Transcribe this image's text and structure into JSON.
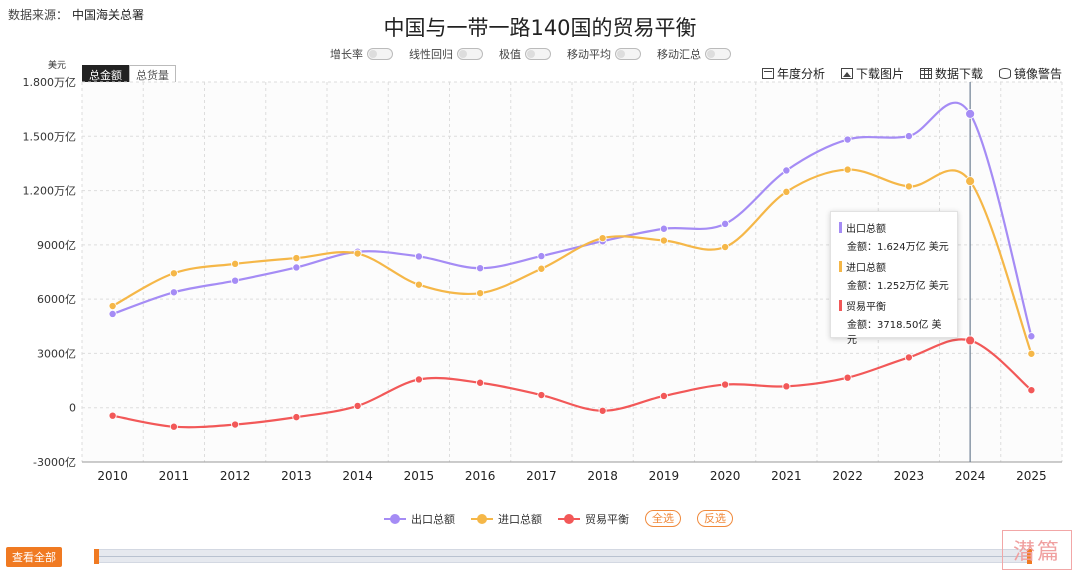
{
  "source": {
    "label": "数据来源：",
    "value": "中国海关总署"
  },
  "title": "中国与一带一路140国的贸易平衡",
  "toggles": [
    {
      "label": "增长率"
    },
    {
      "label": "线性回归"
    },
    {
      "label": "极值"
    },
    {
      "label": "移动平均"
    },
    {
      "label": "移动汇总"
    }
  ],
  "unit_label": "美元",
  "metric_tabs": [
    {
      "label": "总金额",
      "active": true
    },
    {
      "label": "总货量",
      "active": false
    }
  ],
  "tools": [
    {
      "label": "年度分析",
      "icon": "calendar-icon"
    },
    {
      "label": "下载图片",
      "icon": "image-icon"
    },
    {
      "label": "数据下载",
      "icon": "table-icon"
    },
    {
      "label": "镜像警告",
      "icon": "database-icon"
    }
  ],
  "chart_data": {
    "type": "line",
    "x": [
      "2010",
      "2011",
      "2012",
      "2013",
      "2014",
      "2015",
      "2016",
      "2017",
      "2018",
      "2019",
      "2020",
      "2021",
      "2022",
      "2023",
      "2024",
      "2025"
    ],
    "ylim": [
      -3000,
      18000
    ],
    "yticks": [
      -3000,
      0,
      3000,
      6000,
      9000,
      12000,
      15000,
      18000
    ],
    "ytick_labels": [
      "-3000亿",
      "0",
      "3000亿",
      "6000亿",
      "9000亿",
      "1.200万亿",
      "1.500万亿",
      "1.800万亿"
    ],
    "grid": true,
    "series": [
      {
        "name": "出口总额",
        "color": "#a58cf5",
        "values": [
          5180,
          6380,
          7020,
          7750,
          8620,
          8360,
          7710,
          8380,
          9200,
          9890,
          10160,
          13110,
          14820,
          15010,
          16240,
          3950
        ]
      },
      {
        "name": "进口总额",
        "color": "#f5b748",
        "values": [
          5620,
          7430,
          7950,
          8270,
          8520,
          6800,
          6330,
          7680,
          9370,
          9240,
          8880,
          11930,
          13160,
          12230,
          12520,
          2980
        ]
      },
      {
        "name": "贸易平衡",
        "color": "#f25858",
        "values": [
          -440,
          -1050,
          -930,
          -520,
          100,
          1560,
          1380,
          700,
          -170,
          650,
          1280,
          1180,
          1660,
          2780,
          3718.5,
          970
        ]
      }
    ],
    "highlight_index": 14
  },
  "tooltip": {
    "items": [
      {
        "name": "出口总额",
        "value": "金额：1.624万亿 美元",
        "color": "#a58cf5"
      },
      {
        "name": "进口总额",
        "value": "金额：1.252万亿 美元",
        "color": "#f5b748"
      },
      {
        "name": "贸易平衡",
        "value": "金额：3718.50亿 美元",
        "color": "#f25858"
      }
    ]
  },
  "legend": {
    "items": [
      {
        "name": "出口总额",
        "color": "#a58cf5"
      },
      {
        "name": "进口总额",
        "color": "#f5b748"
      },
      {
        "name": "贸易平衡",
        "color": "#f25858"
      }
    ],
    "select_all": "全选",
    "invert": "反选"
  },
  "view_all": "查看全部",
  "watermark": "潜篇"
}
